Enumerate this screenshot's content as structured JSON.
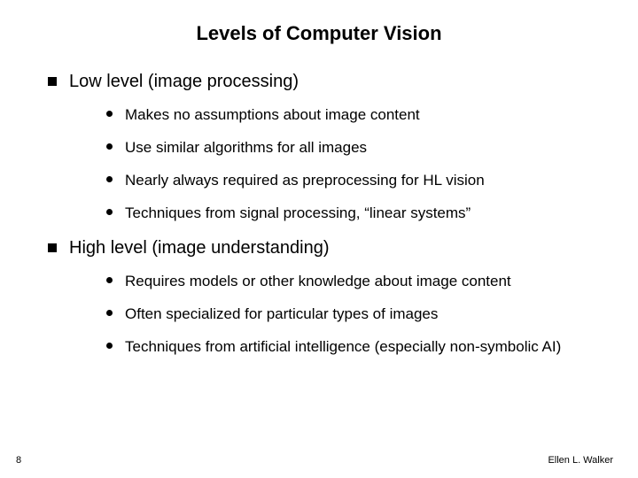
{
  "title": "Levels of Computer Vision",
  "title_fontsize": 22,
  "level1_fontsize": 20,
  "level2_fontsize": 17,
  "footer_fontsize": 11,
  "line_height": 1.25,
  "background_color": "#ffffff",
  "text_color": "#000000",
  "slide_number": "8",
  "footer_author": "Ellen L. Walker",
  "sections": [
    {
      "heading": "Low level (image processing)",
      "items": [
        "Makes no assumptions about image content",
        "Use similar algorithms for all images",
        "Nearly always required as preprocessing for HL vision",
        "Techniques from signal processing, “linear systems”"
      ]
    },
    {
      "heading": "High level (image understanding)",
      "items": [
        "Requires models or other knowledge about image content",
        "Often specialized for particular types of images",
        "Techniques from artificial intelligence (especially non-symbolic AI)"
      ]
    }
  ]
}
